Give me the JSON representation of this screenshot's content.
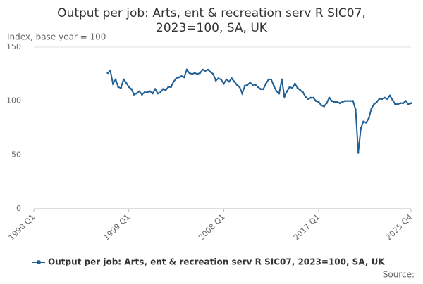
{
  "chart_data": {
    "type": "line",
    "title": [
      "Output per job: Arts, ent & recreation serv R SIC07,",
      "2023=100, SA, UK"
    ],
    "y_label": "Index, base year = 100",
    "source": "Source:",
    "categories": [
      "1990 Q1",
      null,
      null,
      null,
      null,
      null,
      null,
      null,
      null,
      null,
      null,
      null,
      null,
      null,
      null,
      null,
      null,
      null,
      null,
      null,
      null,
      null,
      null,
      null,
      null,
      null,
      null,
      null,
      null,
      null,
      null,
      null,
      null,
      null,
      null,
      null,
      "1999 Q1",
      null,
      null,
      null,
      null,
      null,
      null,
      null,
      null,
      null,
      null,
      null,
      null,
      null,
      null,
      null,
      null,
      null,
      null,
      null,
      null,
      null,
      null,
      null,
      null,
      null,
      null,
      null,
      null,
      null,
      null,
      null,
      null,
      null,
      null,
      null,
      "2008 Q1",
      null,
      null,
      null,
      null,
      null,
      null,
      null,
      null,
      null,
      null,
      null,
      null,
      null,
      null,
      null,
      null,
      null,
      null,
      null,
      null,
      null,
      null,
      null,
      null,
      null,
      null,
      null,
      null,
      null,
      null,
      null,
      null,
      null,
      null,
      null,
      "2017 Q1",
      null,
      null,
      null,
      null,
      null,
      null,
      null,
      null,
      null,
      null,
      null,
      null,
      null,
      null,
      null,
      null,
      null,
      null,
      null,
      null,
      null,
      null,
      null,
      null,
      null,
      null,
      null,
      null,
      null,
      null,
      null,
      null,
      null,
      null,
      "2025 Q4"
    ],
    "series": [
      {
        "name": "Output per job: Arts, ent & recreation serv R SIC07, 2023=100, SA, UK",
        "color": "#206095",
        "values": [
          null,
          null,
          null,
          null,
          null,
          null,
          null,
          null,
          null,
          null,
          null,
          null,
          null,
          null,
          null,
          null,
          null,
          null,
          null,
          null,
          null,
          null,
          null,
          null,
          null,
          null,
          null,
          null,
          126,
          128,
          116,
          120,
          113,
          112,
          120,
          117,
          113,
          111,
          106,
          107,
          109,
          106,
          108,
          108,
          109,
          107,
          111,
          107,
          108,
          111,
          110,
          113,
          113,
          118,
          121,
          122,
          123,
          122,
          129,
          126,
          125,
          126,
          125,
          126,
          129,
          128,
          129,
          127,
          125,
          119,
          121,
          120,
          116,
          120,
          118,
          121,
          118,
          115,
          113,
          107,
          114,
          115,
          117,
          115,
          115,
          113,
          111,
          111,
          116,
          120,
          120,
          114,
          109,
          107,
          120,
          104,
          109,
          113,
          112,
          116,
          112,
          110,
          108,
          104,
          102,
          103,
          103,
          100,
          99,
          96,
          95,
          98,
          103,
          100,
          99,
          99,
          98,
          99,
          100,
          100,
          100,
          100,
          92,
          52,
          75,
          81,
          80,
          84,
          93,
          97,
          99,
          102,
          102,
          103,
          102,
          105,
          101,
          97,
          97,
          98,
          98,
          100,
          97,
          98
        ]
      }
    ],
    "ylim": [
      0,
      150
    ],
    "yticks": [
      0,
      50,
      100,
      150
    ],
    "grid": true
  }
}
